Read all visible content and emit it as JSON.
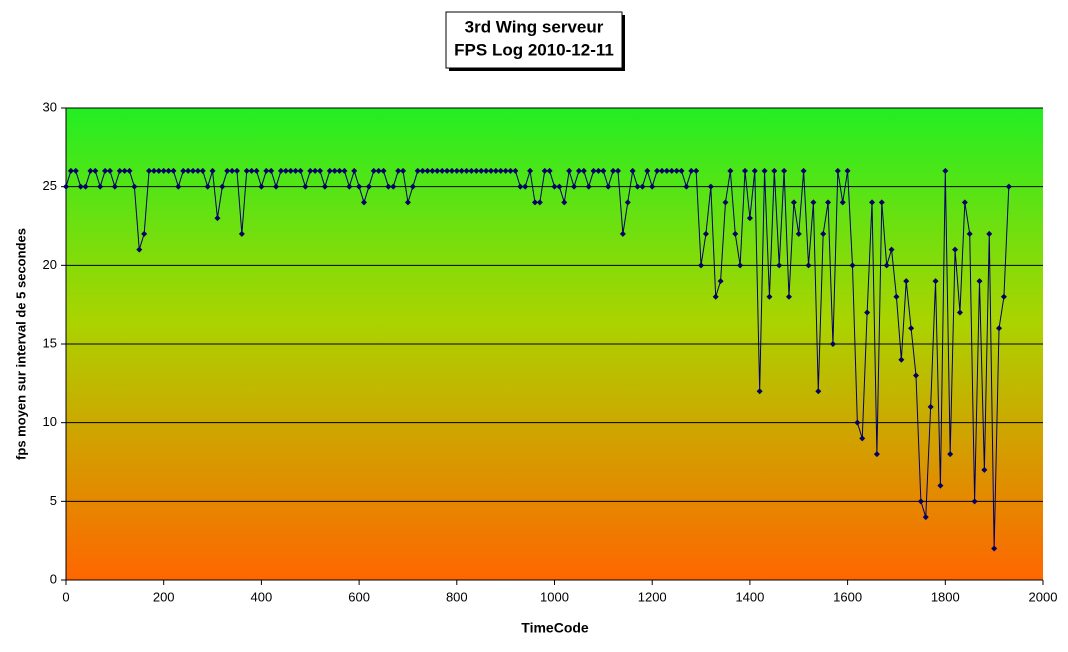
{
  "chart_data": {
    "type": "line",
    "title": [
      "3rd Wing serveur",
      "FPS Log 2010-12-11"
    ],
    "x_label": "TimeCode",
    "y_label": "fps moyen sur interval de 5 secondes",
    "x": [
      0,
      10,
      20,
      30,
      40,
      50,
      60,
      70,
      80,
      90,
      100,
      110,
      120,
      130,
      140,
      150,
      160,
      170,
      180,
      190,
      200,
      210,
      220,
      230,
      240,
      250,
      260,
      270,
      280,
      290,
      300,
      310,
      320,
      330,
      340,
      350,
      360,
      370,
      380,
      390,
      400,
      410,
      420,
      430,
      440,
      450,
      460,
      470,
      480,
      490,
      500,
      510,
      520,
      530,
      540,
      550,
      560,
      570,
      580,
      590,
      600,
      610,
      620,
      630,
      640,
      650,
      660,
      670,
      680,
      690,
      700,
      710,
      720,
      730,
      740,
      750,
      760,
      770,
      780,
      790,
      800,
      810,
      820,
      830,
      840,
      850,
      860,
      870,
      880,
      890,
      900,
      910,
      920,
      930,
      940,
      950,
      960,
      970,
      980,
      990,
      1000,
      1010,
      1020,
      1030,
      1040,
      1050,
      1060,
      1070,
      1080,
      1090,
      1100,
      1110,
      1120,
      1130,
      1140,
      1150,
      1160,
      1170,
      1180,
      1190,
      1200,
      1210,
      1220,
      1230,
      1240,
      1250,
      1260,
      1270,
      1280,
      1290,
      1300,
      1310,
      1320,
      1330,
      1340,
      1350,
      1360,
      1370,
      1380,
      1390,
      1400,
      1410,
      1420,
      1430,
      1440,
      1450,
      1460,
      1470,
      1480,
      1490,
      1500,
      1510,
      1520,
      1530,
      1540,
      1550,
      1560,
      1570,
      1580,
      1590,
      1600,
      1610,
      1620,
      1630,
      1640,
      1650,
      1660,
      1670,
      1680,
      1690,
      1700,
      1710,
      1720,
      1730,
      1740,
      1750,
      1760,
      1770,
      1780,
      1790,
      1800,
      1810,
      1820,
      1830,
      1840,
      1850,
      1860,
      1870,
      1880,
      1890,
      1900,
      1910,
      1920,
      1930
    ],
    "series": [
      {
        "name": "fps",
        "color": "#000066",
        "values": [
          25,
          26,
          26,
          25,
          25,
          26,
          26,
          25,
          26,
          26,
          25,
          26,
          26,
          26,
          25,
          21,
          22,
          26,
          26,
          26,
          26,
          26,
          26,
          25,
          26,
          26,
          26,
          26,
          26,
          25,
          26,
          23,
          25,
          26,
          26,
          26,
          22,
          26,
          26,
          26,
          25,
          26,
          26,
          25,
          26,
          26,
          26,
          26,
          26,
          25,
          26,
          26,
          26,
          25,
          26,
          26,
          26,
          26,
          25,
          26,
          25,
          24,
          25,
          26,
          26,
          26,
          25,
          25,
          26,
          26,
          24,
          25,
          26,
          26,
          26,
          26,
          26,
          26,
          26,
          26,
          26,
          26,
          26,
          26,
          26,
          26,
          26,
          26,
          26,
          26,
          26,
          26,
          26,
          25,
          25,
          26,
          24,
          24,
          26,
          26,
          25,
          25,
          24,
          26,
          25,
          26,
          26,
          25,
          26,
          26,
          26,
          25,
          26,
          26,
          22,
          24,
          26,
          25,
          25,
          26,
          25,
          26,
          26,
          26,
          26,
          26,
          26,
          25,
          26,
          26,
          20,
          22,
          25,
          18,
          19,
          24,
          26,
          22,
          20,
          26,
          23,
          26,
          12,
          26,
          18,
          26,
          20,
          26,
          18,
          24,
          22,
          26,
          20,
          24,
          12,
          22,
          24,
          15,
          26,
          24,
          26,
          20,
          10,
          9,
          17,
          24,
          8,
          24,
          20,
          21,
          18,
          14,
          19,
          16,
          13,
          5,
          4,
          11,
          19,
          6,
          26,
          8,
          21,
          17,
          24,
          22,
          5,
          19,
          7,
          22,
          2,
          16,
          18,
          25
        ]
      }
    ],
    "xlim": [
      0,
      2000
    ],
    "ylim": [
      0,
      30
    ],
    "xticks": [
      0,
      200,
      400,
      600,
      800,
      1000,
      1200,
      1400,
      1600,
      1800,
      2000
    ],
    "yticks": [
      0,
      5,
      10,
      15,
      20,
      25,
      30
    ],
    "grid": true
  }
}
